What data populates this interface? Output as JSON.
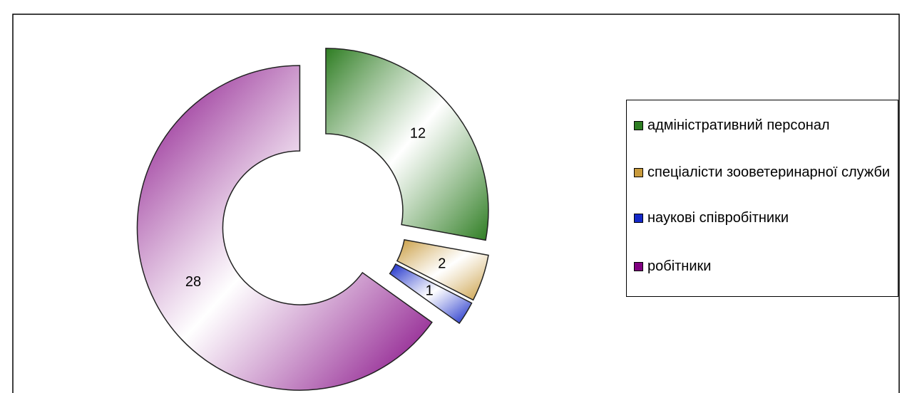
{
  "chart_data": {
    "type": "donut",
    "categories": [
      "адміністративний персонал",
      "спеціалісти зооветеринарної служби",
      "наукові співробітники",
      "робітники"
    ],
    "values": [
      12,
      2,
      1,
      28
    ],
    "colors": [
      "#2e7d22",
      "#c89a3c",
      "#1428c8",
      "#800080"
    ],
    "legend": "right"
  }
}
